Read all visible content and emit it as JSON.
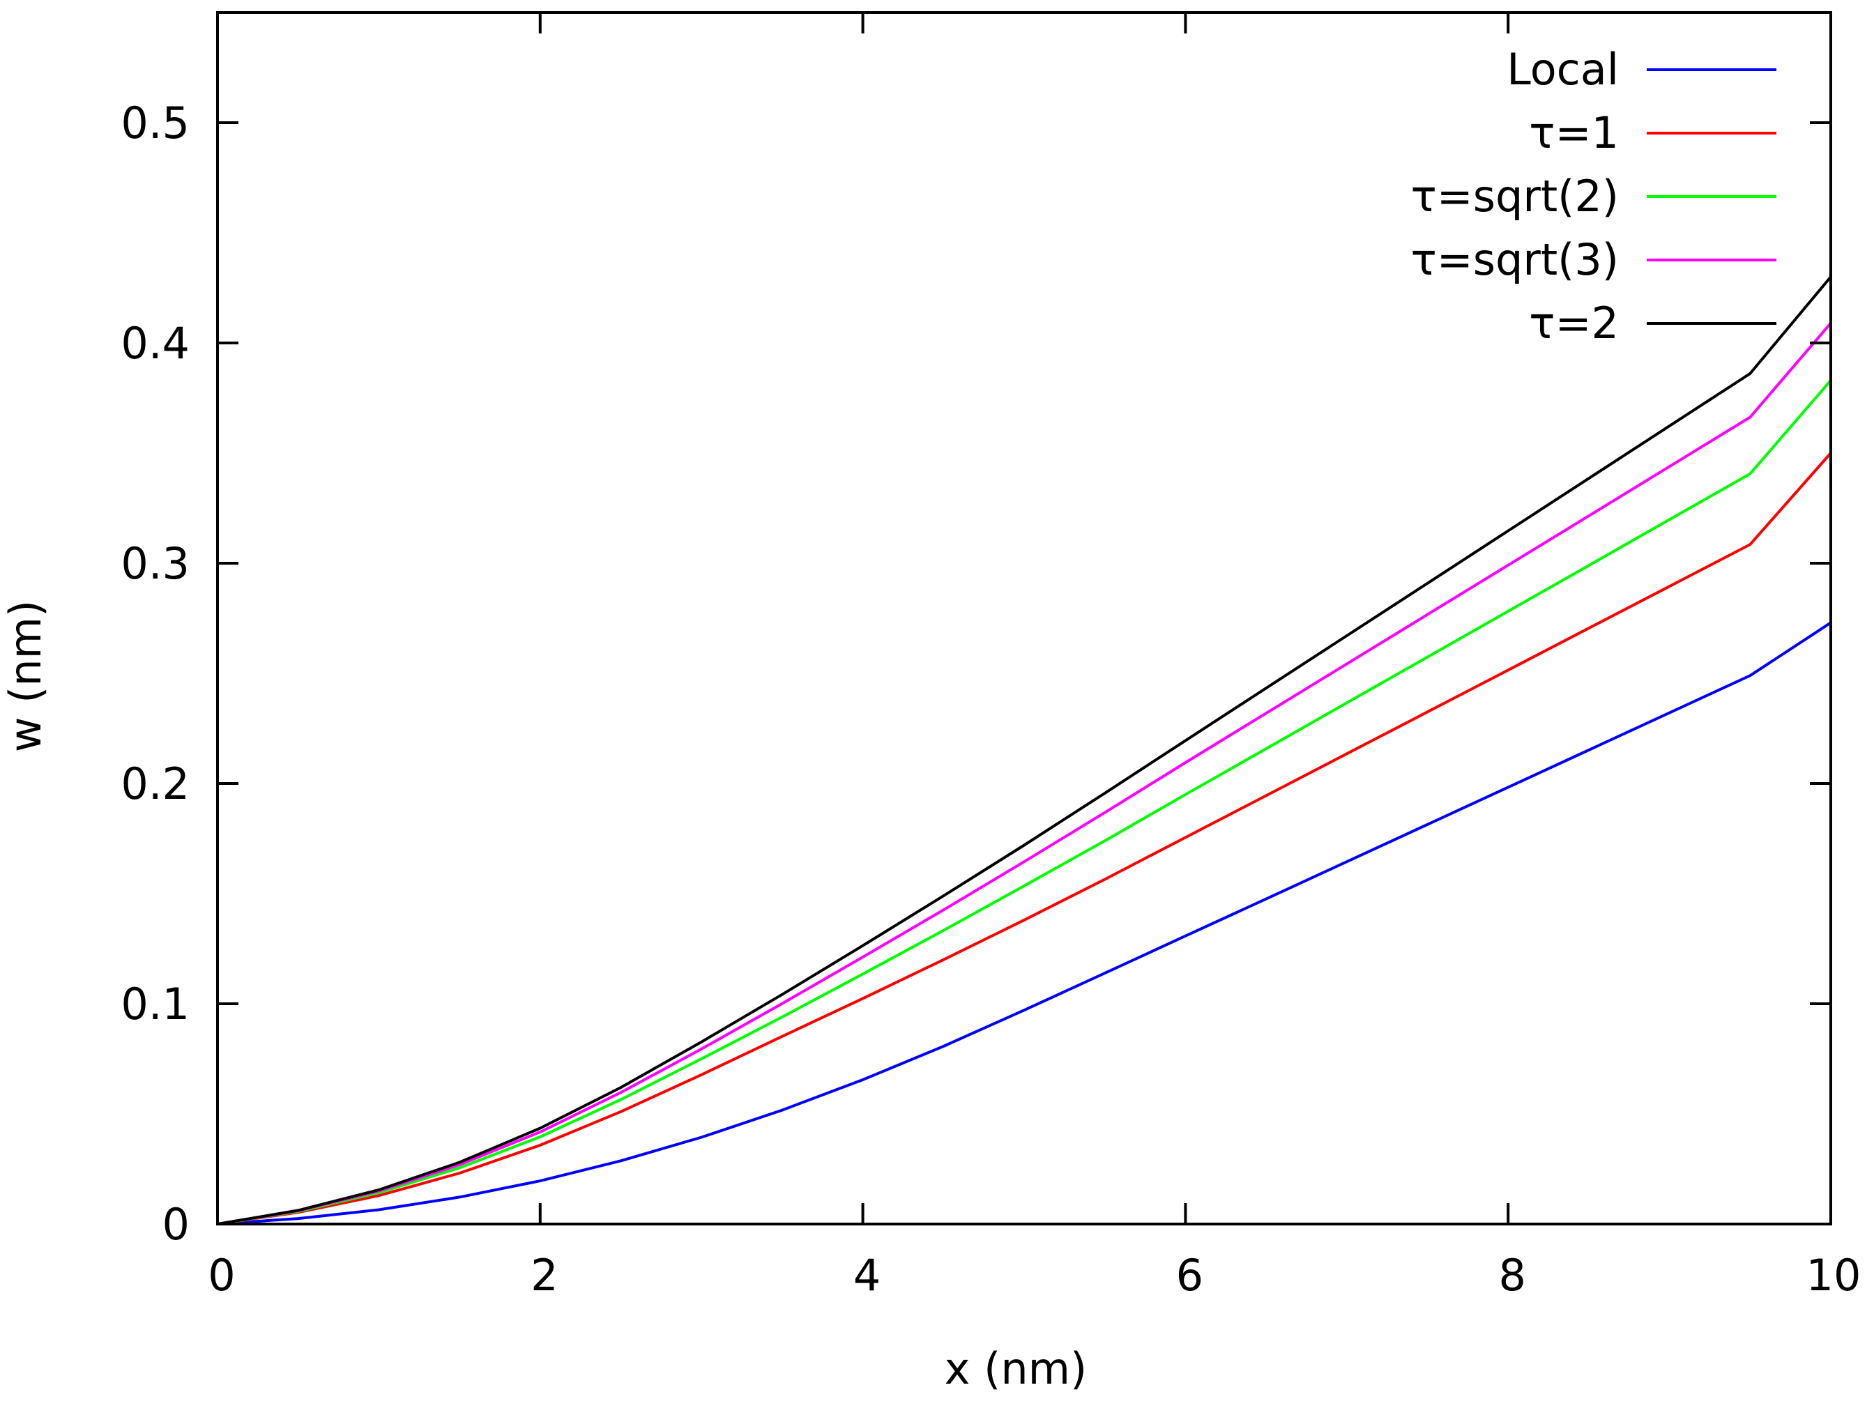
{
  "chart_data": {
    "type": "line",
    "title": "",
    "xlabel": "x (nm)",
    "ylabel": "w (nm)",
    "xlim": [
      0,
      10
    ],
    "ylim": [
      0,
      0.55
    ],
    "xticks": [
      0,
      2,
      4,
      6,
      8,
      10
    ],
    "xtick_labels": [
      "0",
      "2",
      "4",
      "6",
      "8",
      "10"
    ],
    "yticks": [
      0,
      0.1,
      0.2,
      0.3,
      0.4,
      0.5
    ],
    "ytick_labels": [
      "0",
      "0.1",
      "0.2",
      "0.3",
      "0.4",
      "0.5"
    ],
    "grid": false,
    "legend_position": "top-right",
    "x": [
      0,
      0.5,
      1,
      1.5,
      2,
      2.5,
      3,
      3.5,
      4,
      4.5,
      5,
      5.5,
      6,
      6.5,
      7,
      7.5,
      8,
      8.5,
      9,
      9.5,
      10
    ],
    "series": [
      {
        "name": "Local",
        "color": "#0000ff",
        "values": [
          0,
          0.0025,
          0.0065,
          0.0122,
          0.0196,
          0.0287,
          0.0394,
          0.0517,
          0.0655,
          0.0807,
          0.0971,
          0.1139,
          0.1308,
          0.1476,
          0.1645,
          0.1814,
          0.1983,
          0.2152,
          0.2321,
          0.249,
          0.273
        ]
      },
      {
        "name": "τ=1",
        "color": "#ff0000",
        "values": [
          0,
          0.0053,
          0.0129,
          0.0231,
          0.0358,
          0.051,
          0.0678,
          0.0852,
          0.1024,
          0.12,
          0.138,
          0.1565,
          0.1755,
          0.1945,
          0.2135,
          0.2325,
          0.2515,
          0.2705,
          0.2895,
          0.3085,
          0.35
        ]
      },
      {
        "name": "τ=sqrt(2)",
        "color": "#00ff00",
        "values": [
          0,
          0.0057,
          0.0142,
          0.0255,
          0.0396,
          0.0565,
          0.075,
          0.094,
          0.1135,
          0.1333,
          0.1535,
          0.174,
          0.195,
          0.2158,
          0.2366,
          0.2574,
          0.2782,
          0.299,
          0.3198,
          0.3406,
          0.383
        ]
      },
      {
        "name": "τ=sqrt(3)",
        "color": "#ff00ff",
        "values": [
          0,
          0.006,
          0.015,
          0.0269,
          0.0418,
          0.0597,
          0.0795,
          0.1001,
          0.1212,
          0.1426,
          0.1645,
          0.1868,
          0.2095,
          0.2319,
          0.2543,
          0.2767,
          0.2991,
          0.3215,
          0.3439,
          0.3663,
          0.409
        ]
      },
      {
        "name": "τ=2",
        "color": "#000000",
        "values": [
          0,
          0.0062,
          0.0155,
          0.028,
          0.0435,
          0.062,
          0.0827,
          0.1042,
          0.1264,
          0.149,
          0.172,
          0.1956,
          0.2195,
          0.2433,
          0.2671,
          0.2909,
          0.3147,
          0.3385,
          0.3623,
          0.3861,
          0.43
        ]
      }
    ]
  }
}
